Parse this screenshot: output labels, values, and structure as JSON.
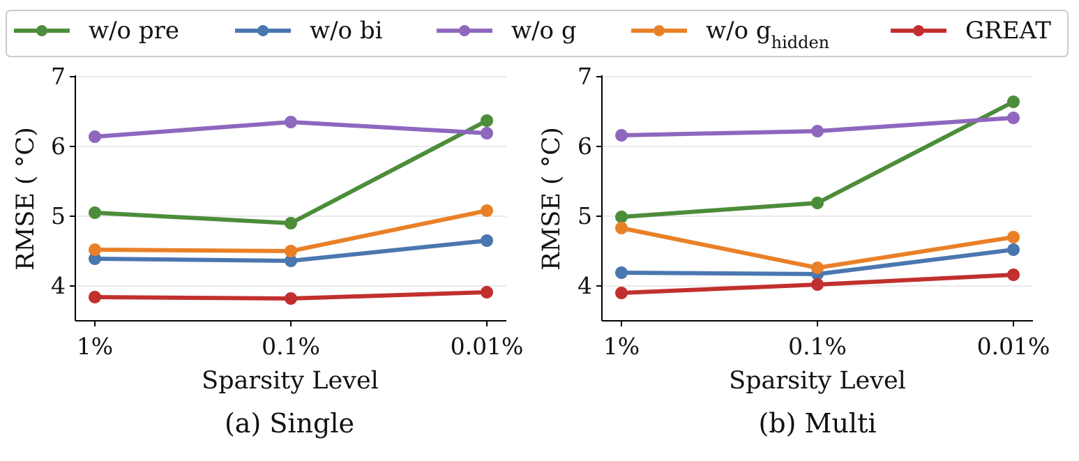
{
  "chart_data": [
    {
      "type": "line",
      "title": "",
      "caption": "(a) Single",
      "xlabel": "Sparsity Level",
      "ylabel": "RMSE ( °C)",
      "categories": [
        "1%",
        "0.1%",
        "0.01%"
      ],
      "ylim": [
        3.5,
        7
      ],
      "yticks": [
        4,
        5,
        6,
        7
      ],
      "grid": "horizontal",
      "series": [
        {
          "name": "w/o pre",
          "color": "#4c8c3a",
          "values": [
            5.05,
            4.9,
            6.37
          ]
        },
        {
          "name": "w/o bi",
          "color": "#4a77b0",
          "values": [
            4.39,
            4.36,
            4.65
          ]
        },
        {
          "name": "w/o g",
          "color": "#8f67be",
          "values": [
            6.14,
            6.35,
            6.19
          ]
        },
        {
          "name": "w/o g_hidden",
          "color": "#e98028",
          "values": [
            4.52,
            4.5,
            5.08
          ]
        },
        {
          "name": "GREAT",
          "color": "#c1302e",
          "values": [
            3.84,
            3.82,
            3.91
          ]
        }
      ]
    },
    {
      "type": "line",
      "title": "",
      "caption": "(b) Multi",
      "xlabel": "Sparsity Level",
      "ylabel": "RMSE ( °C)",
      "categories": [
        "1%",
        "0.1%",
        "0.01%"
      ],
      "ylim": [
        3.5,
        7
      ],
      "yticks": [
        4,
        5,
        6,
        7
      ],
      "grid": "horizontal",
      "series": [
        {
          "name": "w/o pre",
          "color": "#4c8c3a",
          "values": [
            4.99,
            5.19,
            6.64
          ]
        },
        {
          "name": "w/o bi",
          "color": "#4a77b0",
          "values": [
            4.19,
            4.17,
            4.52
          ]
        },
        {
          "name": "w/o g",
          "color": "#8f67be",
          "values": [
            6.16,
            6.22,
            6.41
          ]
        },
        {
          "name": "w/o g_hidden",
          "color": "#e98028",
          "values": [
            4.83,
            4.26,
            4.7
          ]
        },
        {
          "name": "GREAT",
          "color": "#c1302e",
          "values": [
            3.9,
            4.02,
            4.16
          ]
        }
      ]
    }
  ],
  "legend": {
    "placement": "top-center",
    "entries": [
      {
        "label": "w/o pre",
        "sub": "",
        "color": "#4c8c3a"
      },
      {
        "label": "w/o bi",
        "sub": "",
        "color": "#4a77b0"
      },
      {
        "label": "w/o g",
        "sub": "",
        "color": "#8f67be"
      },
      {
        "label": "w/o g",
        "sub": "hidden",
        "color": "#e98028"
      },
      {
        "label": "GREAT",
        "sub": "",
        "color": "#c1302e"
      }
    ]
  }
}
